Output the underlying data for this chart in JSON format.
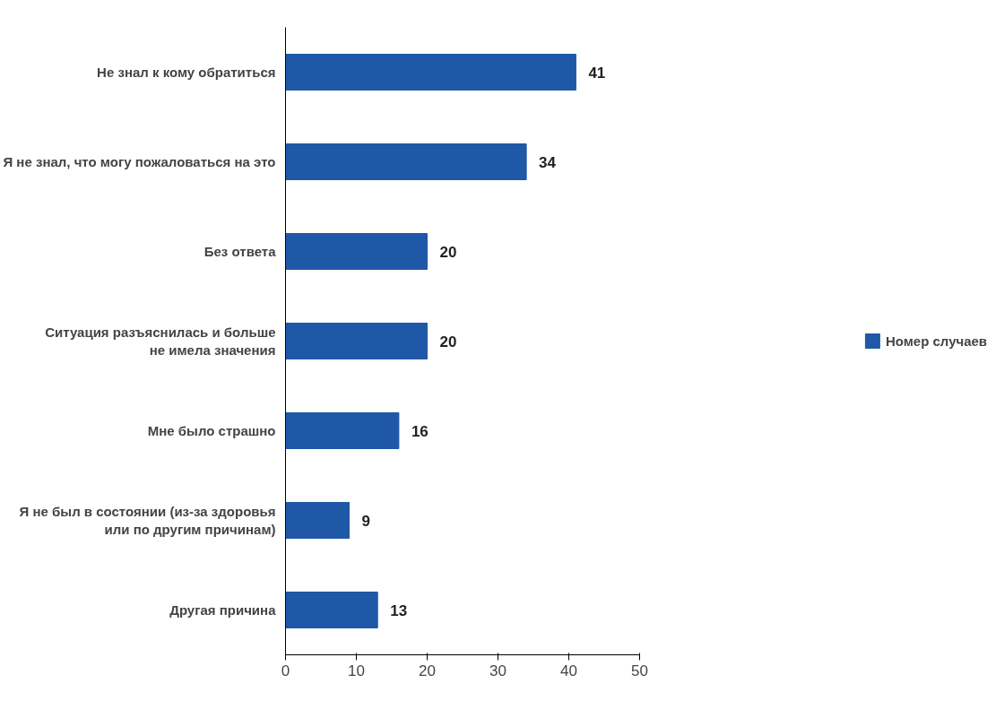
{
  "chart_data": {
    "type": "bar",
    "orientation": "horizontal",
    "categories": [
      "Не знал к кому обратиться",
      "Я не знал, что могу пожаловаться на это",
      "Без ответа",
      "Ситуация разъяснилась и больше\nне имела значения",
      "Мне было страшно",
      "Я не был в состоянии (из-за здоровья\nили по другим причинам)",
      "Другая причина"
    ],
    "series": [
      {
        "name": "Номер случаев",
        "color": "#1f58a6",
        "values": [
          41,
          34,
          20,
          20,
          16,
          9,
          13
        ]
      }
    ],
    "xlim": [
      0,
      50
    ],
    "xticks": [
      0,
      10,
      20,
      30,
      40,
      50
    ],
    "data_labels": true,
    "legend": "right",
    "grid": false
  }
}
